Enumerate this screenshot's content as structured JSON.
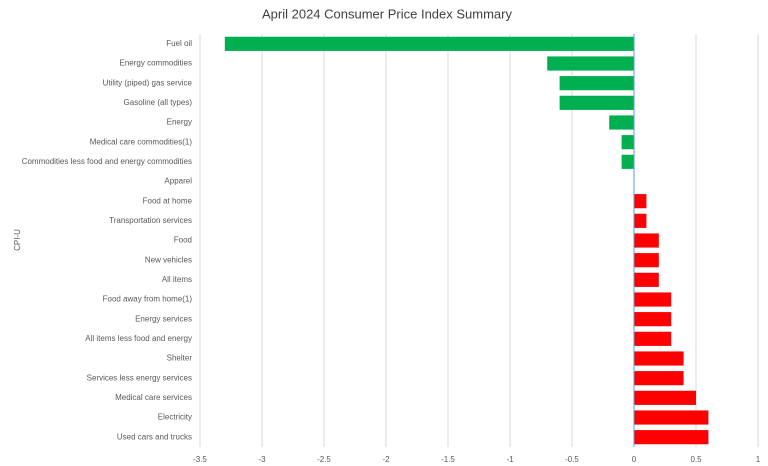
{
  "chart_data": {
    "type": "hbar",
    "title": "April 2024 Consumer Price Index Summary",
    "y_label": "CPI-U",
    "categories": [
      "Fuel oil",
      "Energy commodities",
      "Utility (piped) gas service",
      "Gasoline (all types)",
      "Energy",
      "Medical care commodities(1)",
      "Commodities less food and energy commodities",
      "Apparel",
      "Food at home",
      "Transportation services",
      "Food",
      "New vehicles",
      "All items",
      "Food away from home(1)",
      "Energy services",
      "All items less food and energy",
      "Shelter",
      "Services less energy services",
      "Medical care services",
      "Electricity",
      "Used cars and trucks"
    ],
    "values": [
      -3.3,
      -0.7,
      -0.6,
      -0.6,
      -0.2,
      -0.1,
      -0.1,
      0,
      0.1,
      0.1,
      0.2,
      0.2,
      0.2,
      0.3,
      0.3,
      0.3,
      0.4,
      0.4,
      0.5,
      0.6,
      0.6
    ],
    "positive_color": "#ff0000",
    "negative_color": "#00b050",
    "xlim": [
      -3.5,
      1
    ],
    "xticks": [
      -3.5,
      -3,
      -2.5,
      -2,
      -1.5,
      -1,
      -0.5,
      0,
      0.5,
      1
    ],
    "grid": true
  }
}
